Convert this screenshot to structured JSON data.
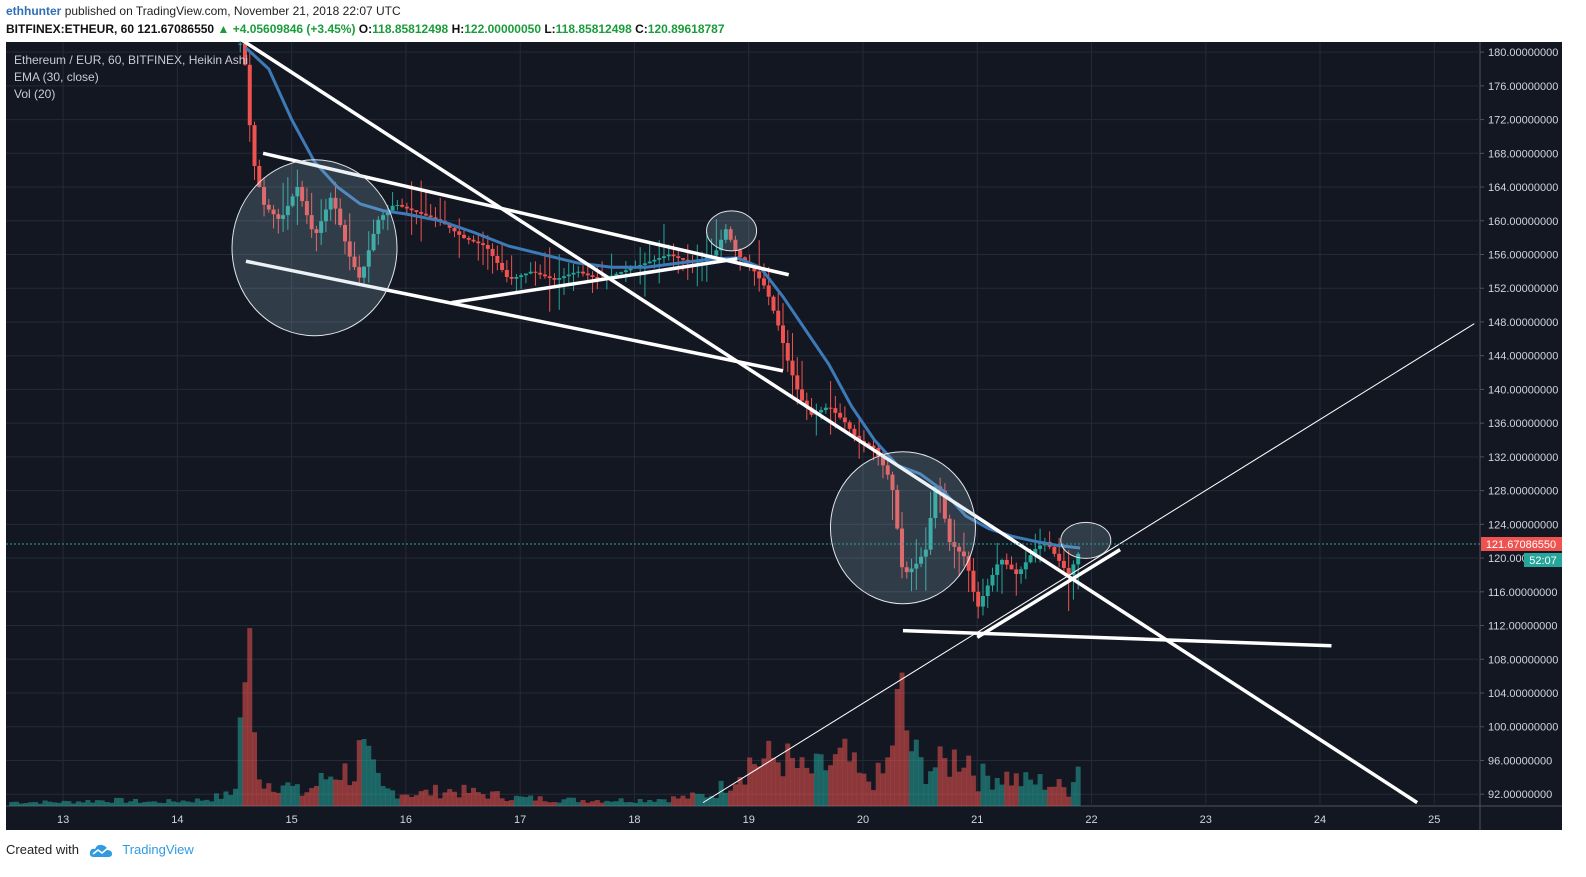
{
  "header": {
    "author": "ethhunter",
    "published": "published on TradingView.com, November 21, 2018 22:07 UTC"
  },
  "ticker": {
    "symbol": "BITFINEX:ETHEUR, 60",
    "price": "121.67086550",
    "change": "+4.05609846 (+3.45%)",
    "o_label": "O:",
    "o": "118.85812498",
    "h_label": "H:",
    "h": "122.00000050",
    "l_label": "L:",
    "l": "118.85812498",
    "c_label": "C:",
    "c": "120.89618787"
  },
  "legend": {
    "line1": "Ethereum / EUR, 60, BITFINEX, Heikin Ashi",
    "line2": "EMA (30, close)",
    "line3": "Vol (20)"
  },
  "price_label": "121.67086550",
  "countdown": "52:07",
  "footer": {
    "created": "Created with",
    "brand": "TradingView"
  },
  "colors": {
    "background": "#131722",
    "up": "#26a69a",
    "down": "#ef5350",
    "ema": "#3d7ab8",
    "grid": "#2a2e39"
  },
  "chart_data": {
    "type": "candlestick",
    "x_ticks": [
      "13",
      "14",
      "15",
      "16",
      "17",
      "18",
      "19",
      "20",
      "21",
      "22",
      "23",
      "24",
      "25"
    ],
    "y_ticks": [
      "180.00000000",
      "176.00000000",
      "172.00000000",
      "168.00000000",
      "164.00000000",
      "160.00000000",
      "156.00000000",
      "152.00000000",
      "148.00000000",
      "144.00000000",
      "140.00000000",
      "136.00000000",
      "132.00000000",
      "128.00000000",
      "124.00000000",
      "120.00000000",
      "116.00000000",
      "112.00000000",
      "108.00000000",
      "104.00000000",
      "100.00000000",
      "96.00000000",
      "92.00000000"
    ],
    "ylim": [
      90.6,
      181.2
    ],
    "xlim": [
      12.5,
      25.4
    ],
    "price_path": [
      [
        14.55,
        181
      ],
      [
        14.6,
        178
      ],
      [
        14.65,
        168
      ],
      [
        14.75,
        162
      ],
      [
        14.9,
        160
      ],
      [
        15.05,
        164
      ],
      [
        15.2,
        158
      ],
      [
        15.35,
        163
      ],
      [
        15.5,
        156
      ],
      [
        15.6,
        153
      ],
      [
        15.75,
        160
      ],
      [
        15.9,
        162
      ],
      [
        16.1,
        161
      ],
      [
        16.3,
        160
      ],
      [
        16.5,
        158
      ],
      [
        16.7,
        157
      ],
      [
        16.9,
        153
      ],
      [
        17.1,
        154
      ],
      [
        17.3,
        153
      ],
      [
        17.5,
        154
      ],
      [
        17.7,
        153
      ],
      [
        17.9,
        154
      ],
      [
        18.1,
        155
      ],
      [
        18.3,
        156
      ],
      [
        18.5,
        155
      ],
      [
        18.7,
        156
      ],
      [
        18.8,
        159
      ],
      [
        18.9,
        156
      ],
      [
        19.05,
        154
      ],
      [
        19.15,
        152
      ],
      [
        19.25,
        148
      ],
      [
        19.35,
        143
      ],
      [
        19.45,
        139
      ],
      [
        19.55,
        137
      ],
      [
        19.7,
        138
      ],
      [
        19.85,
        136
      ],
      [
        19.95,
        134
      ],
      [
        20.1,
        133
      ],
      [
        20.25,
        129
      ],
      [
        20.35,
        118
      ],
      [
        20.45,
        119
      ],
      [
        20.55,
        121
      ],
      [
        20.65,
        130
      ],
      [
        20.75,
        122
      ],
      [
        20.9,
        120
      ],
      [
        21.0,
        114
      ],
      [
        21.1,
        117
      ],
      [
        21.2,
        120
      ],
      [
        21.35,
        118
      ],
      [
        21.5,
        121
      ],
      [
        21.6,
        122
      ],
      [
        21.7,
        120
      ],
      [
        21.8,
        118
      ],
      [
        21.9,
        121
      ]
    ],
    "ema": [
      [
        14.6,
        180.5
      ],
      [
        14.8,
        178
      ],
      [
        15.0,
        172
      ],
      [
        15.2,
        167
      ],
      [
        15.4,
        164
      ],
      [
        15.6,
        162
      ],
      [
        15.8,
        161.2
      ],
      [
        16.0,
        160.8
      ],
      [
        16.3,
        160
      ],
      [
        16.6,
        158.6
      ],
      [
        16.9,
        157
      ],
      [
        17.2,
        156
      ],
      [
        17.5,
        155
      ],
      [
        17.8,
        154.5
      ],
      [
        18.1,
        154.5
      ],
      [
        18.4,
        155
      ],
      [
        18.7,
        155.5
      ],
      [
        18.9,
        155.6
      ],
      [
        19.1,
        154.5
      ],
      [
        19.3,
        151
      ],
      [
        19.5,
        147
      ],
      [
        19.7,
        143
      ],
      [
        19.9,
        138
      ],
      [
        20.1,
        134
      ],
      [
        20.3,
        131
      ],
      [
        20.5,
        130
      ],
      [
        20.7,
        128
      ],
      [
        20.9,
        125
      ],
      [
        21.1,
        123.5
      ],
      [
        21.3,
        122.6
      ],
      [
        21.5,
        122
      ],
      [
        21.7,
        121.5
      ],
      [
        21.9,
        121.2
      ]
    ],
    "volume": [
      [
        12.7,
        1
      ],
      [
        13.0,
        1
      ],
      [
        13.4,
        1.5
      ],
      [
        13.8,
        1
      ],
      [
        14.2,
        1.5
      ],
      [
        14.5,
        3
      ],
      [
        14.62,
        44
      ],
      [
        14.66,
        18
      ],
      [
        14.75,
        6
      ],
      [
        14.9,
        6
      ],
      [
        15.1,
        3
      ],
      [
        15.4,
        9
      ],
      [
        15.55,
        8
      ],
      [
        15.6,
        14
      ],
      [
        15.8,
        4
      ],
      [
        16.1,
        3
      ],
      [
        16.35,
        4
      ],
      [
        16.7,
        3
      ],
      [
        17.0,
        2
      ],
      [
        17.5,
        1.5
      ],
      [
        18.0,
        1.5
      ],
      [
        18.4,
        2
      ],
      [
        18.7,
        3
      ],
      [
        19.0,
        11
      ],
      [
        19.3,
        12
      ],
      [
        19.5,
        8
      ],
      [
        19.7,
        10
      ],
      [
        19.85,
        12
      ],
      [
        20.0,
        6
      ],
      [
        20.2,
        8
      ],
      [
        20.33,
        28
      ],
      [
        20.4,
        16
      ],
      [
        20.5,
        10
      ],
      [
        20.6,
        10
      ],
      [
        20.7,
        10
      ],
      [
        20.9,
        14
      ],
      [
        21.0,
        7
      ],
      [
        21.2,
        8
      ],
      [
        21.4,
        6
      ],
      [
        21.6,
        6
      ],
      [
        21.8,
        4
      ],
      [
        21.85,
        10
      ]
    ],
    "vol_scale_max": 50,
    "annotations": {
      "lines": [
        [
          14.6,
          155.2,
          19.3,
          142.2
        ],
        [
          14.75,
          168,
          19.35,
          153.6
        ],
        [
          16.4,
          150.3,
          18.9,
          155.5
        ],
        [
          14.5,
          182,
          24.85,
          91
        ],
        [
          20.35,
          111.4,
          24.1,
          109.6
        ],
        [
          21.0,
          110.6,
          22.25,
          121
        ],
        [
          18.6,
          91,
          25.35,
          147.8
        ]
      ],
      "circles": [
        [
          15.2,
          156.8,
          66,
          88
        ],
        [
          18.85,
          158.8,
          20,
          20
        ],
        [
          20.35,
          123.6,
          58,
          76
        ],
        [
          21.95,
          122.1,
          20,
          18
        ]
      ]
    }
  }
}
